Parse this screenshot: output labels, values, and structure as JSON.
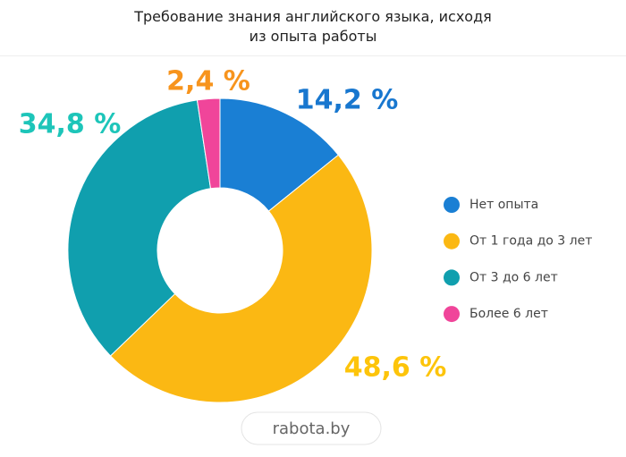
{
  "chart_data": {
    "type": "donut",
    "title": "Требование знания английского языка, исходя из опыта работы",
    "categories": [
      "Нет опыта",
      "От 1 года до 3 лет",
      "От 3 до 6 лет",
      "Более 6 лет"
    ],
    "values": [
      14.2,
      48.6,
      34.8,
      2.4
    ],
    "value_labels": [
      "14,2 %",
      "48,6 %",
      "34,8 %",
      "2,4 %"
    ],
    "colors": [
      "#1a7fd4",
      "#fbb813",
      "#109fae",
      "#f0459a"
    ],
    "label_colors": [
      "#1877cf",
      "#fdc40a",
      "#1dc5b9",
      "#f7941d"
    ],
    "legend": "right",
    "source": "rabota.by"
  }
}
